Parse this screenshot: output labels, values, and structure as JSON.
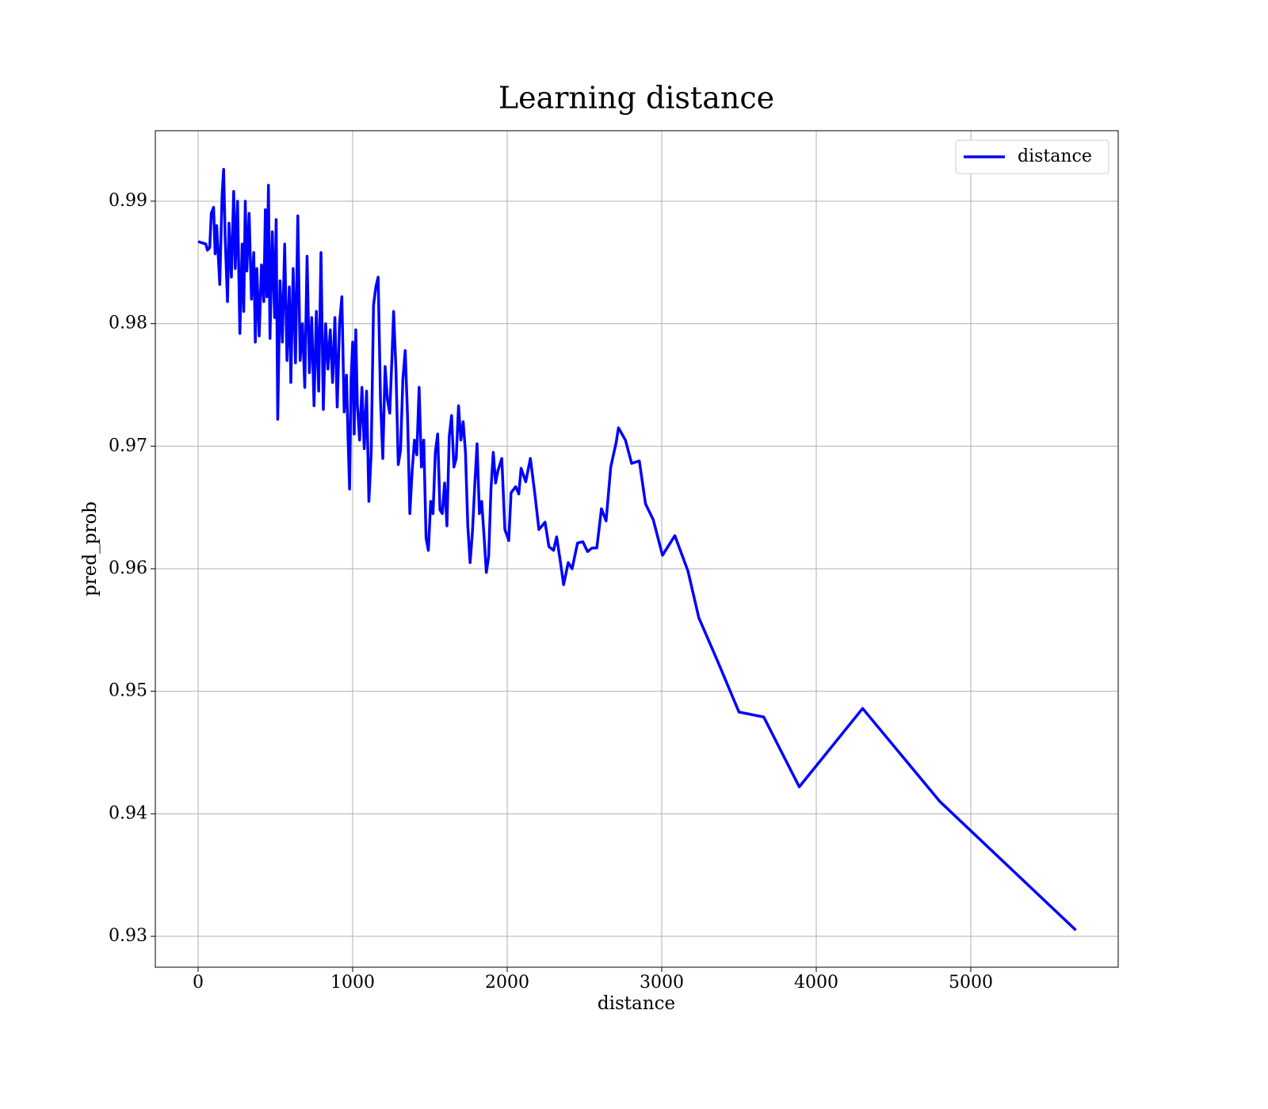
{
  "chart_data": {
    "type": "line",
    "title": "Learning distance",
    "xlabel": "distance",
    "ylabel": "pred_prob",
    "x": [
      0,
      50,
      60,
      75,
      85,
      100,
      110,
      120,
      140,
      155,
      165,
      175,
      190,
      200,
      215,
      230,
      240,
      255,
      270,
      285,
      295,
      305,
      315,
      330,
      345,
      360,
      370,
      380,
      395,
      410,
      425,
      435,
      445,
      455,
      465,
      480,
      495,
      505,
      515,
      530,
      545,
      560,
      575,
      590,
      600,
      615,
      630,
      645,
      660,
      675,
      690,
      705,
      720,
      735,
      750,
      765,
      780,
      795,
      810,
      825,
      840,
      855,
      870,
      885,
      900,
      915,
      930,
      945,
      960,
      970,
      980,
      990,
      1000,
      1010,
      1020,
      1030,
      1045,
      1060,
      1075,
      1090,
      1105,
      1120,
      1135,
      1150,
      1165,
      1180,
      1195,
      1210,
      1225,
      1240,
      1255,
      1265,
      1280,
      1295,
      1310,
      1325,
      1340,
      1355,
      1370,
      1385,
      1400,
      1415,
      1430,
      1445,
      1460,
      1475,
      1490,
      1505,
      1520,
      1535,
      1550,
      1565,
      1580,
      1595,
      1610,
      1625,
      1640,
      1655,
      1670,
      1685,
      1700,
      1715,
      1730,
      1745,
      1760,
      1775,
      1790,
      1805,
      1820,
      1835,
      1850,
      1865,
      1880,
      1895,
      1910,
      1925,
      1940,
      1965,
      1985,
      2010,
      2025,
      2055,
      2075,
      2090,
      2120,
      2150,
      2180,
      2205,
      2245,
      2270,
      2300,
      2320,
      2345,
      2365,
      2395,
      2420,
      2455,
      2490,
      2520,
      2550,
      2580,
      2610,
      2640,
      2670,
      2705,
      2720,
      2765,
      2805,
      2855,
      2895,
      2945,
      3005,
      3085,
      3170,
      3240,
      3360,
      3500,
      3660,
      3890,
      4300,
      4800,
      5680
    ],
    "series": [
      {
        "name": "distance",
        "color": "#0000ff",
        "values": [
          0.9867,
          0.9865,
          0.986,
          0.9862,
          0.989,
          0.9895,
          0.9857,
          0.988,
          0.9832,
          0.9905,
          0.9926,
          0.987,
          0.9818,
          0.9882,
          0.9838,
          0.9908,
          0.9845,
          0.99,
          0.9792,
          0.9865,
          0.981,
          0.99,
          0.9843,
          0.989,
          0.982,
          0.9858,
          0.9785,
          0.9845,
          0.979,
          0.9848,
          0.9818,
          0.9893,
          0.9822,
          0.9913,
          0.9788,
          0.9875,
          0.9805,
          0.9885,
          0.9722,
          0.9835,
          0.9785,
          0.9865,
          0.977,
          0.983,
          0.9752,
          0.9845,
          0.9768,
          0.9888,
          0.977,
          0.98,
          0.9748,
          0.9855,
          0.976,
          0.9805,
          0.9733,
          0.981,
          0.9745,
          0.9858,
          0.973,
          0.98,
          0.9763,
          0.9795,
          0.9752,
          0.9805,
          0.9732,
          0.98,
          0.9822,
          0.9728,
          0.9758,
          0.9707,
          0.9665,
          0.9755,
          0.9785,
          0.971,
          0.9795,
          0.9735,
          0.9705,
          0.9748,
          0.9698,
          0.9745,
          0.9655,
          0.9695,
          0.9815,
          0.983,
          0.9838,
          0.9738,
          0.969,
          0.9765,
          0.9738,
          0.9727,
          0.9775,
          0.981,
          0.9763,
          0.9685,
          0.9697,
          0.9755,
          0.9778,
          0.9725,
          0.9645,
          0.968,
          0.9705,
          0.9693,
          0.9748,
          0.9683,
          0.9705,
          0.9625,
          0.9615,
          0.9655,
          0.9645,
          0.9695,
          0.971,
          0.9648,
          0.9645,
          0.967,
          0.9635,
          0.9708,
          0.9725,
          0.9683,
          0.969,
          0.9733,
          0.9705,
          0.972,
          0.9695,
          0.9635,
          0.9605,
          0.963,
          0.9668,
          0.9702,
          0.9645,
          0.9655,
          0.9627,
          0.9597,
          0.961,
          0.9665,
          0.9695,
          0.967,
          0.968,
          0.969,
          0.9632,
          0.9623,
          0.9662,
          0.9667,
          0.9661,
          0.9682,
          0.9671,
          0.969,
          0.966,
          0.9632,
          0.9638,
          0.9618,
          0.9615,
          0.9626,
          0.9605,
          0.9587,
          0.9605,
          0.96,
          0.9621,
          0.9622,
          0.9614,
          0.9617,
          0.9617,
          0.9649,
          0.9639,
          0.9683,
          0.9703,
          0.9715,
          0.9705,
          0.9686,
          0.9688,
          0.9653,
          0.964,
          0.9611,
          0.9627,
          0.9598,
          0.956,
          0.9525,
          0.9483,
          0.9479,
          0.9422,
          0.9486,
          0.941,
          0.9305
        ]
      }
    ],
    "xlim": [
      -277,
      5954
    ],
    "xticks": [
      0,
      1000,
      2000,
      3000,
      4000,
      5000
    ],
    "ylim": [
      0.92748,
      0.99575
    ],
    "yticks": [
      0.93,
      0.94,
      0.95,
      0.96,
      0.97,
      0.98,
      0.99
    ],
    "grid": true,
    "legend": "upper right"
  }
}
